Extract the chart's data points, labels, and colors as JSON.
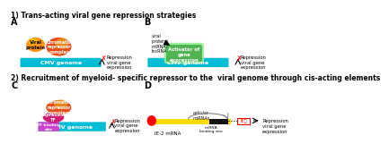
{
  "title1": "1) Trans-acting viral gene repression strategies",
  "title2": "2) Recruitment of myeloid- specific repressor to the  viral genome through cis-acting elements",
  "label_A": "A",
  "label_B": "B",
  "label_C": "C",
  "label_D": "D",
  "bg_color": "#f5f0e8",
  "cmv_color": "#00bcd4",
  "viral_protein_color1": "#ff8c00",
  "viral_protein_color2": "#ffcc00",
  "chromatin_color1": "#e63b00",
  "chromatin_color2": "#e8a020",
  "activator_color1": "#228b22",
  "activator_color2": "#90ee90",
  "repressive_tf_color": "#cc0066",
  "tf_binding_color": "#cc44cc",
  "ie2_color": "#ff0000",
  "mrna_yellow": "#ffdd00",
  "mrna_black": "#111111",
  "repression_text": "Repression\nviral gene\nexpression"
}
